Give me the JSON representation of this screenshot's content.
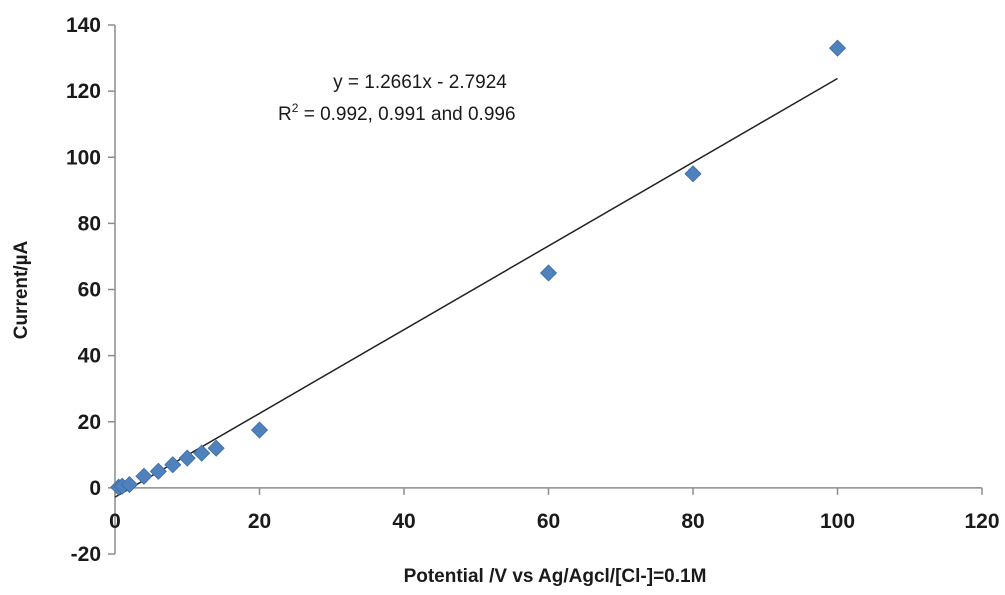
{
  "chart_data": {
    "type": "scatter",
    "title": "",
    "xlabel": "Potential  /V vs Ag/Agcl/[Cl-]=0.1M",
    "ylabel": "Current/µA",
    "xlim": [
      0,
      120
    ],
    "ylim": [
      -20,
      140
    ],
    "xticks": [
      0,
      20,
      40,
      60,
      80,
      100,
      120
    ],
    "yticks": [
      -20,
      0,
      20,
      40,
      60,
      80,
      100,
      120,
      140
    ],
    "grid": false,
    "legend": "none",
    "series": [
      {
        "marker": "diamond",
        "color": "#4F81BD",
        "points": [
          {
            "x": 0.5,
            "y": 0.2
          },
          {
            "x": 1,
            "y": 0.5
          },
          {
            "x": 2,
            "y": 1
          },
          {
            "x": 4,
            "y": 3.5
          },
          {
            "x": 6,
            "y": 5
          },
          {
            "x": 8,
            "y": 7
          },
          {
            "x": 10,
            "y": 9
          },
          {
            "x": 12,
            "y": 10.5
          },
          {
            "x": 14,
            "y": 12
          },
          {
            "x": 20,
            "y": 17.5
          },
          {
            "x": 60,
            "y": 65
          },
          {
            "x": 80,
            "y": 95
          },
          {
            "x": 100,
            "y": 133
          }
        ]
      }
    ],
    "trendline": {
      "slope": 1.2661,
      "intercept": -2.7924,
      "x_range": [
        0,
        100
      ],
      "color": "#222222"
    },
    "annotation": {
      "equation": "y = 1.2661x - 2.7924",
      "r_label": "R",
      "r_sup": "2",
      "r_rest": " = 0.992, 0.991 and 0.996"
    }
  }
}
